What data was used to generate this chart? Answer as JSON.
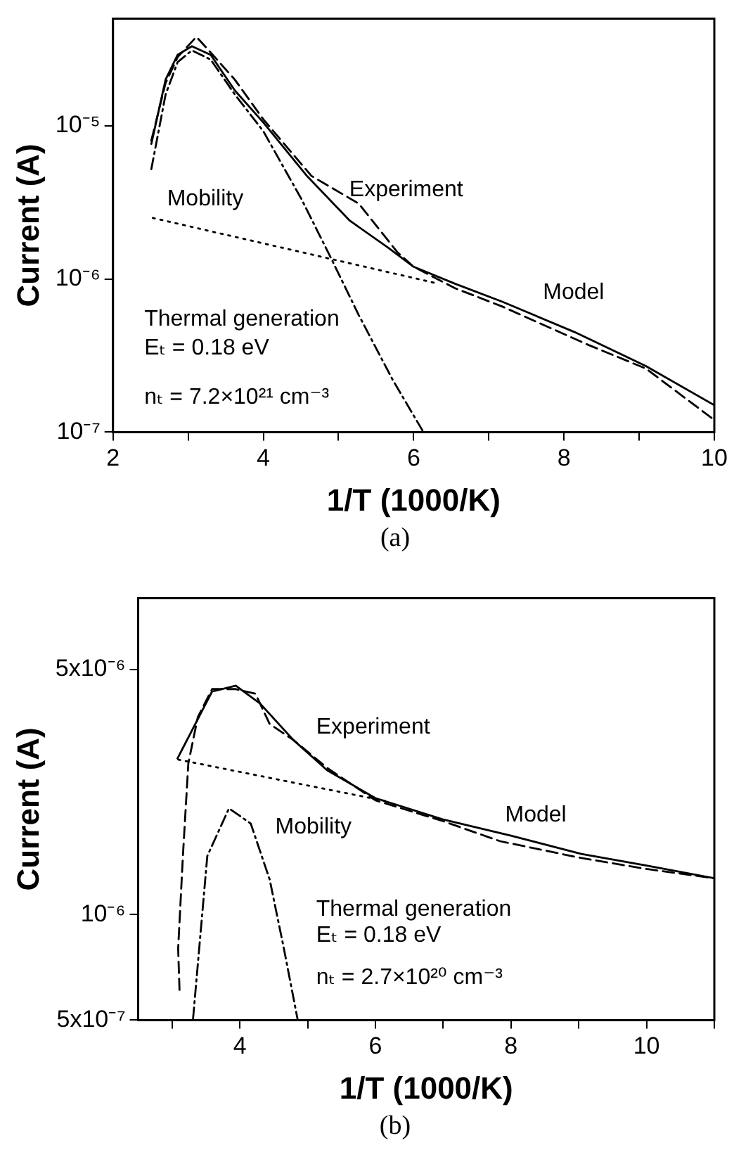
{
  "chart_data": [
    {
      "type": "line",
      "subtitle": "(a)",
      "xlabel": "1/T (1000/K)",
      "ylabel": "Current (A)",
      "log": "y",
      "grid": false,
      "legend": false,
      "marker": "none",
      "xlim": [
        2,
        10
      ],
      "xticks": [
        2,
        {
          "value": 3,
          "label": null
        },
        4,
        {
          "value": 5,
          "label": null
        },
        6,
        {
          "value": 7,
          "label": null
        },
        8,
        {
          "value": 9,
          "label": null
        },
        10
      ],
      "ylim": [
        1e-07,
        5e-05
      ],
      "yticks": [
        {
          "value": 1e-07,
          "label": "10⁻⁷"
        },
        {
          "value": 1e-06,
          "label": "10⁻⁶"
        },
        {
          "value": 1e-05,
          "label": "10⁻⁵"
        }
      ],
      "series": [
        {
          "color": "#000000",
          "line_style": "solid",
          "x": [
            2.51,
            2.7,
            2.86,
            3.05,
            3.3,
            3.62,
            4.0,
            4.58,
            5.15,
            5.66,
            6.0,
            6.55,
            7.18,
            8.14,
            9.09,
            10
          ],
          "values": [
            7.6e-06,
            2e-05,
            2.9e-05,
            3.3e-05,
            2.9e-05,
            1.7e-05,
            1.05e-05,
            4.7e-06,
            2.4e-06,
            1.6e-06,
            1.2e-06,
            9.3e-07,
            7.1e-07,
            4.5e-07,
            2.7e-07,
            1.5e-07
          ]
        },
        {
          "color": "#000000",
          "line_style": "dashed",
          "x": [
            2.51,
            2.7,
            2.86,
            3.11,
            3.3,
            3.62,
            4.0,
            4.64,
            5.27,
            5.78,
            6.0,
            6.55,
            7.18,
            8.33,
            9.09,
            10
          ],
          "values": [
            8e-06,
            1.9e-05,
            2.8e-05,
            3.8e-05,
            3e-05,
            2e-05,
            1.1e-05,
            4.7e-06,
            3.1e-06,
            1.5e-06,
            1.2e-06,
            8.7e-07,
            6.6e-07,
            3.7e-07,
            2.6e-07,
            1.2e-07
          ]
        },
        {
          "color": "#000000",
          "line_style": "dashdot",
          "x": [
            2.51,
            2.7,
            2.86,
            3.05,
            3.3,
            3.62,
            4.0,
            4.51,
            4.89,
            5.27,
            5.72,
            6.13
          ],
          "values": [
            5.2e-06,
            1.6e-05,
            2.6e-05,
            3.1e-05,
            2.7e-05,
            1.6e-05,
            9.2e-06,
            3.3e-06,
            1.4e-06,
            5.8e-07,
            2.2e-07,
            1e-07
          ]
        },
        {
          "color": "#000000",
          "line_style": "dotted",
          "x": [
            2.53,
            6.29
          ],
          "values": [
            2.5e-06,
            9.4e-07
          ]
        }
      ],
      "annotations": [
        "Experiment",
        "Model",
        "Mobility",
        "Thermal generation",
        "Eₜ = 0.18 eV",
        "nₜ = 7.2×10²¹ cm⁻³"
      ]
    },
    {
      "type": "line",
      "subtitle": "(b)",
      "xlabel": "1/T (1000/K)",
      "ylabel": "Current (A)",
      "log": "y",
      "grid": false,
      "legend": false,
      "marker": "none",
      "xlim": [
        2.5,
        11
      ],
      "xticks": [
        {
          "value": 3,
          "label": null
        },
        4,
        {
          "value": 5,
          "label": null
        },
        6,
        {
          "value": 7,
          "label": null
        },
        8,
        {
          "value": 9,
          "label": null
        },
        10,
        {
          "value": 11,
          "label": null
        }
      ],
      "ylim": [
        5e-07,
        8e-06
      ],
      "yticks": [
        {
          "value": 5e-07,
          "label": "5x10⁻⁷"
        },
        {
          "value": 1e-06,
          "label": "10⁻⁶"
        },
        {
          "value": 5e-06,
          "label": "5x10⁻⁶"
        }
      ],
      "series": [
        {
          "color": "#000000",
          "line_style": "solid",
          "x": [
            3.08,
            3.59,
            3.94,
            4.3,
            4.79,
            5.29,
            6.0,
            6.99,
            8.0,
            9.04,
            10,
            11
          ],
          "values": [
            2.79e-06,
            4.33e-06,
            4.5e-06,
            4e-06,
            3.15e-06,
            2.58e-06,
            2.15e-06,
            1.87e-06,
            1.68e-06,
            1.49e-06,
            1.38e-06,
            1.27e-06
          ]
        },
        {
          "color": "#000000",
          "line_style": "dashed",
          "x": [
            3.11,
            3.09,
            3.16,
            3.24,
            3.38,
            3.59,
            3.94,
            4.23,
            4.44,
            4.79,
            5.29,
            6.0,
            6.99,
            7.84,
            9.04,
            10,
            11
          ],
          "values": [
            6.1e-07,
            8e-07,
            1.47e-06,
            2.7e-06,
            3.66e-06,
            4.4e-06,
            4.4e-06,
            4.27e-06,
            3.5e-06,
            3.15e-06,
            2.62e-06,
            2.12e-06,
            1.85e-06,
            1.62e-06,
            1.45e-06,
            1.35e-06,
            1.27e-06
          ]
        },
        {
          "color": "#000000",
          "line_style": "dashdot",
          "x": [
            3.31,
            3.52,
            3.84,
            4.16,
            4.44,
            4.65,
            4.85
          ],
          "values": [
            5.05e-07,
            1.47e-06,
            2.01e-06,
            1.82e-06,
            1.26e-06,
            8e-07,
            5.05e-07
          ]
        },
        {
          "color": "#000000",
          "line_style": "dotted",
          "x": [
            3.09,
            6.2
          ],
          "values": [
            2.77e-06,
            2.1e-06
          ]
        }
      ],
      "annotations": [
        "Experiment",
        "Model",
        "Mobility",
        "Thermal generation",
        "Eₜ = 0.18 eV",
        "nₜ = 2.7×10²⁰ cm⁻³"
      ]
    }
  ]
}
